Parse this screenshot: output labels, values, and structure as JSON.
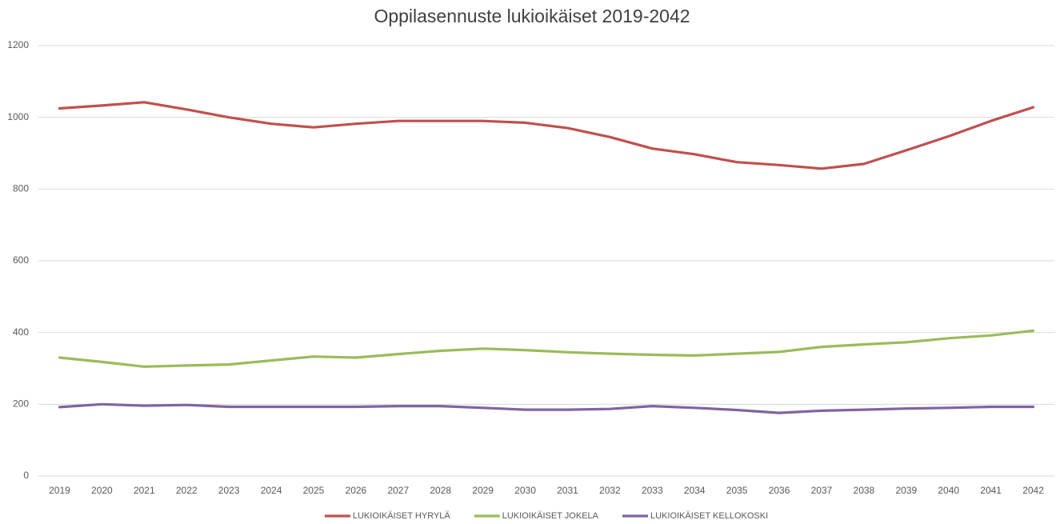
{
  "chart_data": {
    "type": "line",
    "title": "Oppilasennuste lukioikäiset 2019-2042",
    "categories": [
      "2019",
      "2020",
      "2021",
      "2022",
      "2023",
      "2024",
      "2025",
      "2026",
      "2027",
      "2028",
      "2029",
      "2030",
      "2031",
      "2032",
      "2033",
      "2034",
      "2035",
      "2036",
      "2037",
      "2038",
      "2039",
      "2040",
      "2041",
      "2042"
    ],
    "series": [
      {
        "name": "LUKIOIKÄISET HYRYLÄ",
        "color": "#c0504d",
        "values": [
          1025,
          1033,
          1042,
          1022,
          1000,
          982,
          972,
          982,
          990,
          990,
          990,
          985,
          970,
          945,
          913,
          897,
          875,
          867,
          857,
          870,
          908,
          947,
          990,
          1028
        ]
      },
      {
        "name": "LUKIOIKÄISET JOKELA",
        "color": "#9bbb59",
        "values": [
          330,
          318,
          305,
          308,
          311,
          322,
          333,
          330,
          340,
          349,
          355,
          351,
          345,
          341,
          338,
          336,
          341,
          346,
          360,
          367,
          373,
          384,
          392,
          405
        ]
      },
      {
        "name": "LUKIOIKÄISET KELLOKOSKI",
        "color": "#8064a2",
        "values": [
          192,
          200,
          196,
          198,
          193,
          193,
          193,
          193,
          195,
          195,
          190,
          185,
          185,
          187,
          195,
          190,
          184,
          176,
          182,
          185,
          188,
          190,
          193,
          193
        ]
      }
    ],
    "ylim": [
      0,
      1200
    ],
    "yticks": [
      0,
      200,
      400,
      600,
      800,
      1000,
      1200
    ],
    "grid": true,
    "legend": "bottom"
  }
}
